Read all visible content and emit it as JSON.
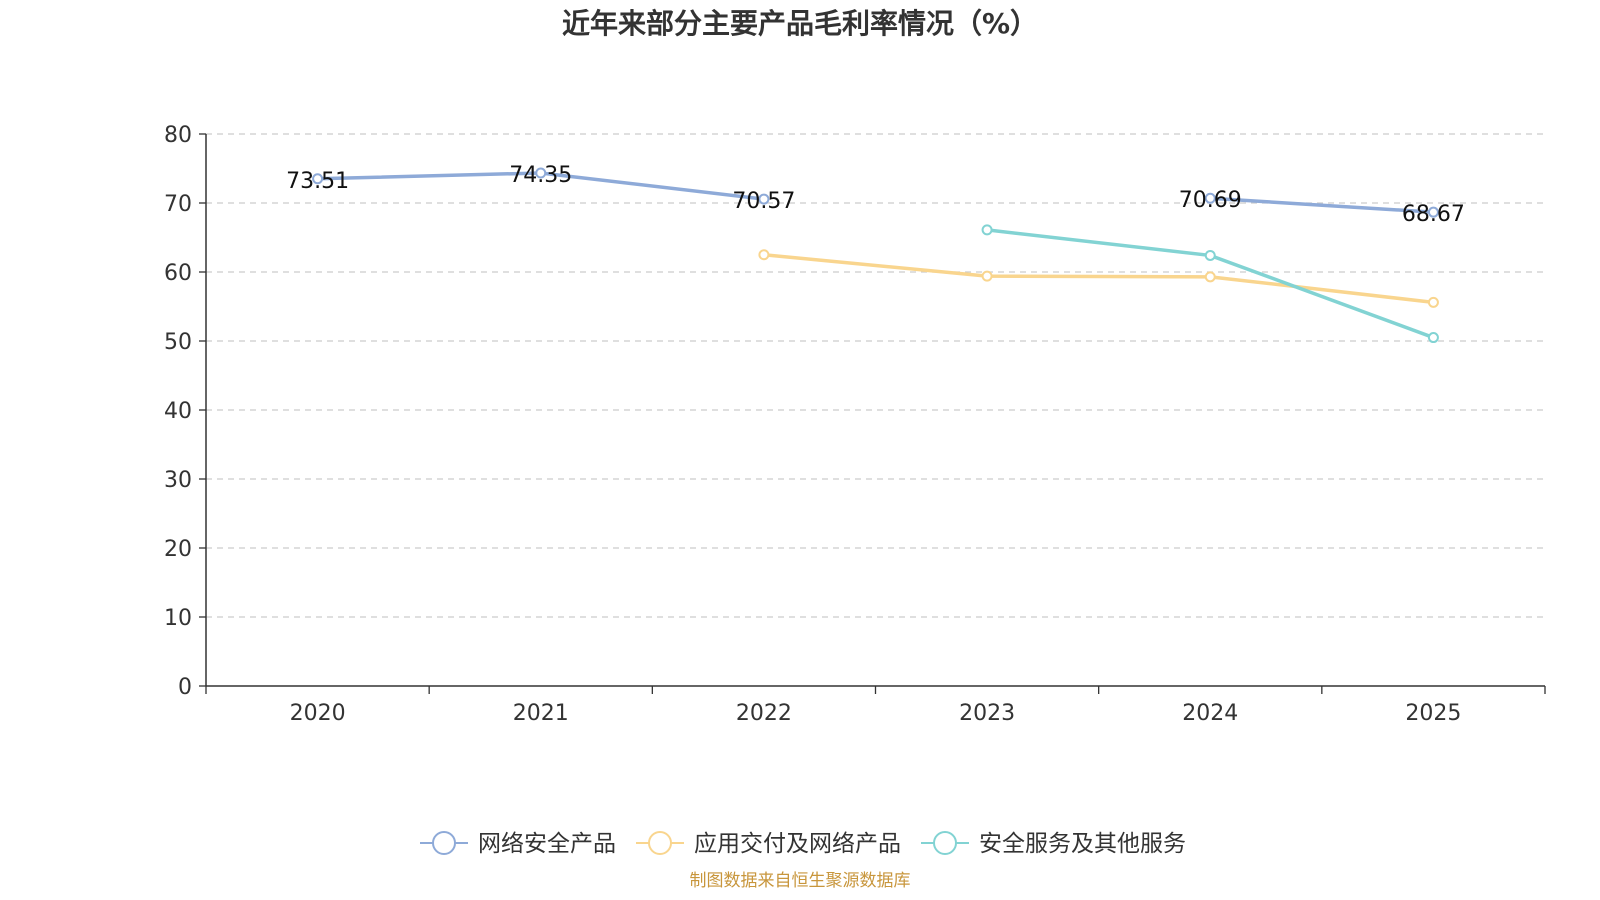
{
  "chart_data": {
    "type": "line",
    "title": "近年来部分主要产品毛利率情况（%）",
    "categories": [
      "2020",
      "2021",
      "2022",
      "2023",
      "2024",
      "2025"
    ],
    "ylim": [
      0,
      80
    ],
    "yticks": [
      0,
      10,
      20,
      30,
      40,
      50,
      60,
      70,
      80
    ],
    "grid": true,
    "legend_position": "bottom-center",
    "series": [
      {
        "name": "网络安全产品",
        "color": "#8eaad8",
        "values": [
          73.51,
          74.35,
          70.57,
          null,
          70.69,
          68.67
        ],
        "labels": [
          "73.51",
          "74.35",
          "70.57",
          null,
          "70.69",
          "68.67"
        ]
      },
      {
        "name": "应用交付及网络产品",
        "color": "#f9d58e",
        "values": [
          null,
          null,
          62.5,
          59.4,
          59.3,
          55.6
        ],
        "labels": [
          null,
          null,
          null,
          null,
          null,
          null
        ]
      },
      {
        "name": "安全服务及其他服务",
        "color": "#82d3d3",
        "values": [
          null,
          null,
          null,
          66.1,
          62.4,
          50.5
        ],
        "labels": [
          null,
          null,
          null,
          null,
          null,
          null
        ]
      }
    ],
    "source": "制图数据来自恒生聚源数据库"
  }
}
